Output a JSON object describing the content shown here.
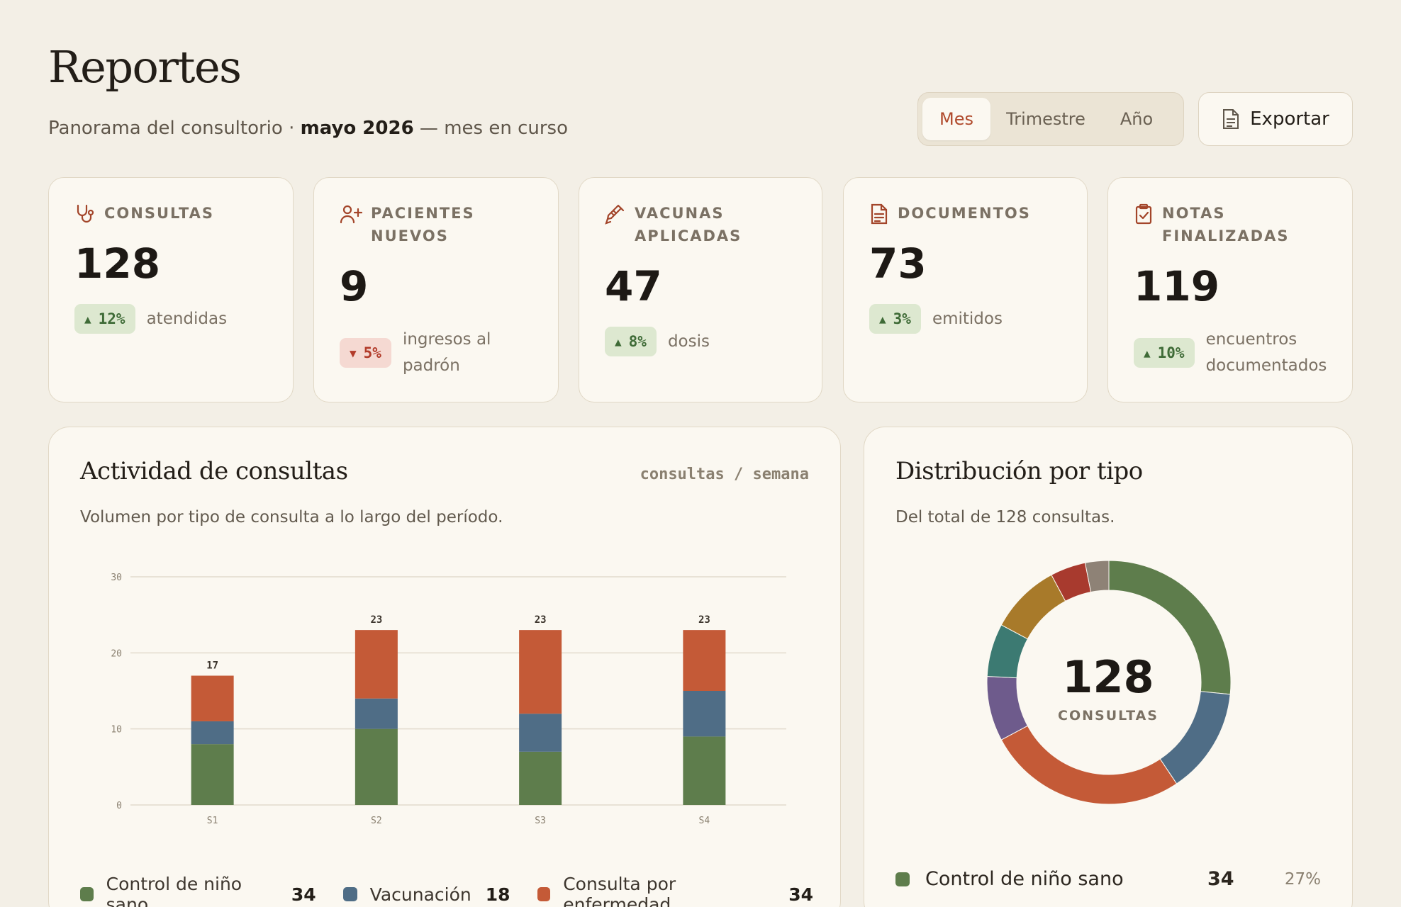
{
  "header": {
    "title": "Reportes",
    "subtitle_prefix": "Panorama del consultorio · ",
    "subtitle_period": "mayo 2026",
    "subtitle_suffix": " — mes en curso",
    "periods": [
      {
        "label": "Mes",
        "active": true
      },
      {
        "label": "Trimestre",
        "active": false
      },
      {
        "label": "Año",
        "active": false
      }
    ],
    "export_label": "Exportar"
  },
  "kpis": [
    {
      "label_line1": "CONSULTAS",
      "label_line2": "",
      "icon": "stethoscope-icon",
      "value": "128",
      "trend": "up",
      "delta": "12%",
      "note_line1": "atendidas",
      "note_line2": ""
    },
    {
      "label_line1": "PACIENTES NUEVOS",
      "label_line2": "",
      "icon": "user-plus-icon",
      "value": "9",
      "trend": "down",
      "delta": "5%",
      "note_line1": "ingresos al",
      "note_line2": "padrón"
    },
    {
      "label_line1": "VACUNAS",
      "label_line2": "APLICADAS",
      "icon": "syringe-icon",
      "value": "47",
      "trend": "up",
      "delta": "8%",
      "note_line1": "dosis",
      "note_line2": ""
    },
    {
      "label_line1": "DOCUMENTOS",
      "label_line2": "",
      "icon": "document-icon",
      "value": "73",
      "trend": "up",
      "delta": "3%",
      "note_line1": "emitidos",
      "note_line2": ""
    },
    {
      "label_line1": "NOTAS",
      "label_line2": "FINALIZADAS",
      "icon": "clipboard-check-icon",
      "value": "119",
      "trend": "up",
      "delta": "10%",
      "note_line1": "encuentros",
      "note_line2": "documentados"
    }
  ],
  "activity": {
    "title": "Actividad de consultas",
    "unit": "consultas / semana",
    "description": "Volumen por tipo de consulta a lo largo del período.",
    "legend": [
      {
        "name": "Control de niño sano",
        "count": "34",
        "color": "#5e7d4c"
      },
      {
        "name": "Vacunación",
        "count": "18",
        "color": "#4f6d86"
      },
      {
        "name": "Consulta por enfermedad",
        "count": "34",
        "color": "#c45a37"
      }
    ]
  },
  "distribution": {
    "title": "Distribución por tipo",
    "description": "Del total de 128 consultas.",
    "center_value": "128",
    "center_label": "CONSULTAS",
    "first_row": {
      "name": "Control de niño sano",
      "count": "34",
      "pct": "27%",
      "color": "#5e7d4c"
    }
  },
  "chart_data": [
    {
      "type": "bar",
      "stacked": true,
      "categories": [
        "S1",
        "S2",
        "S3",
        "S4"
      ],
      "series": [
        {
          "name": "Control de niño sano",
          "values": [
            8,
            10,
            7,
            9
          ],
          "color": "#5e7d4c"
        },
        {
          "name": "Vacunación",
          "values": [
            3,
            4,
            5,
            6
          ],
          "color": "#4f6d86"
        },
        {
          "name": "Consulta por enfermedad",
          "values": [
            6,
            9,
            11,
            8
          ],
          "color": "#c45a37"
        }
      ],
      "totals": [
        17,
        23,
        23,
        23
      ],
      "yticks": [
        0,
        10,
        20,
        30
      ],
      "ylim": [
        0,
        30
      ],
      "grid": true
    },
    {
      "type": "pie",
      "donut": true,
      "total": 128,
      "slices": [
        {
          "value": 34,
          "color": "#5e7d4c"
        },
        {
          "value": 18,
          "color": "#4f6d86"
        },
        {
          "value": 34,
          "color": "#c45a37"
        },
        {
          "value": 11,
          "color": "#6e5b8c"
        },
        {
          "value": 9,
          "color": "#3c7a72"
        },
        {
          "value": 12,
          "color": "#a87a2a"
        },
        {
          "value": 6,
          "color": "#a83a2e"
        },
        {
          "value": 4,
          "color": "#8e8276"
        }
      ]
    }
  ]
}
